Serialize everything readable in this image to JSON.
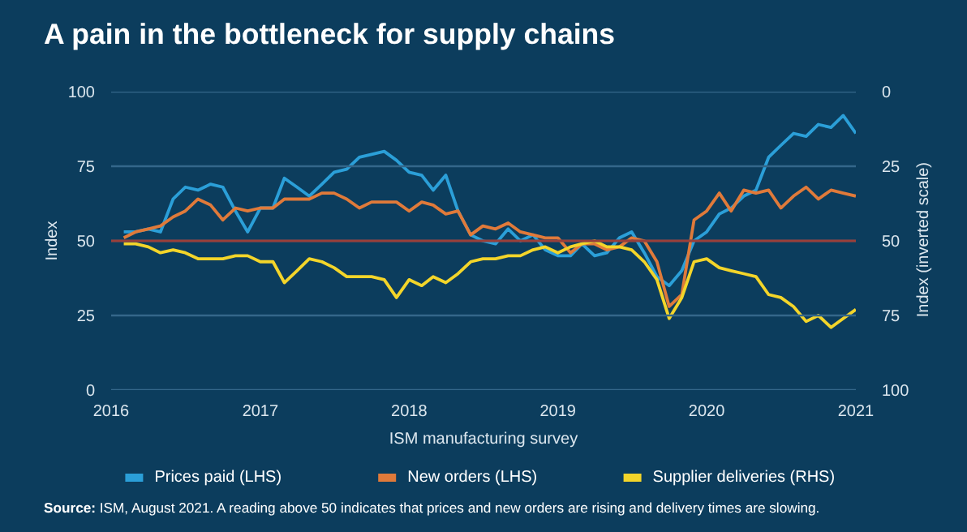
{
  "chart_data": {
    "type": "line",
    "title": "A pain in the bottleneck for supply chains",
    "xlabel": "ISM manufacturing survey",
    "ylabel": "Index",
    "y2label": "Index (inverted scale)",
    "x": [
      "2016-02",
      "2016-03",
      "2016-04",
      "2016-05",
      "2016-06",
      "2016-07",
      "2016-08",
      "2016-09",
      "2016-10",
      "2016-11",
      "2016-12",
      "2017-01",
      "2017-02",
      "2017-03",
      "2017-04",
      "2017-05",
      "2017-06",
      "2017-07",
      "2017-08",
      "2017-09",
      "2017-10",
      "2017-11",
      "2017-12",
      "2018-01",
      "2018-02",
      "2018-03",
      "2018-04",
      "2018-05",
      "2018-06",
      "2018-07",
      "2018-08",
      "2018-09",
      "2018-10",
      "2018-11",
      "2018-12",
      "2019-01",
      "2019-02",
      "2019-03",
      "2019-04",
      "2019-05",
      "2019-06",
      "2019-07",
      "2019-08",
      "2019-09",
      "2019-10",
      "2019-11",
      "2019-12",
      "2020-01",
      "2020-02",
      "2020-03",
      "2020-04",
      "2020-05",
      "2020-06",
      "2020-07",
      "2020-08",
      "2020-09",
      "2020-10",
      "2020-11",
      "2020-12",
      "2021-01"
    ],
    "xlim": [
      "2016",
      "2021"
    ],
    "xticks": [
      "2016",
      "2017",
      "2018",
      "2019",
      "2020",
      "2021"
    ],
    "ylim": [
      0,
      100
    ],
    "yticks": [
      0,
      25,
      50,
      75,
      100
    ],
    "y2lim": [
      100,
      0
    ],
    "y2ticks": [
      0,
      25,
      50,
      75,
      100
    ],
    "grid": "y",
    "legend": "bottom",
    "ref_lines": [
      {
        "axis": "y",
        "value": 50,
        "color": "#9a3f3a"
      }
    ],
    "series": [
      {
        "name": "Prices paid (LHS)",
        "color": "#2b9fd8",
        "values": [
          53,
          53,
          54,
          53,
          64,
          68,
          67,
          69,
          68,
          60,
          53,
          61,
          61,
          71,
          68,
          65,
          69,
          73,
          74,
          78,
          79,
          80,
          77,
          73,
          72,
          67,
          72,
          60,
          52,
          50,
          49,
          54,
          50,
          52,
          47,
          45,
          45,
          49,
          45,
          46,
          51,
          53,
          46,
          38,
          35,
          40,
          50,
          53,
          59,
          61,
          65,
          67,
          78,
          82,
          86,
          85,
          89,
          88,
          92,
          86
        ]
      },
      {
        "name": "New orders (LHS)",
        "color": "#e07a3a",
        "values": [
          51,
          53,
          54,
          55,
          58,
          60,
          64,
          62,
          57,
          61,
          60,
          61,
          61,
          64,
          64,
          64,
          66,
          66,
          64,
          61,
          63,
          63,
          63,
          60,
          63,
          62,
          59,
          60,
          52,
          55,
          54,
          56,
          53,
          52,
          51,
          51,
          46,
          49,
          49,
          47,
          48,
          51,
          50,
          43,
          28,
          32,
          57,
          60,
          66,
          60,
          67,
          66,
          67,
          61,
          65,
          68,
          64,
          67,
          66,
          65
        ]
      },
      {
        "name": "Supplier deliveries (RHS)",
        "color": "#f3d52a",
        "axis": "y2",
        "values": [
          51,
          51,
          52,
          54,
          53,
          54,
          56,
          56,
          56,
          55,
          55,
          57,
          57,
          64,
          60,
          56,
          57,
          59,
          62,
          62,
          62,
          63,
          69,
          63,
          65,
          62,
          64,
          61,
          57,
          56,
          56,
          55,
          55,
          53,
          52,
          54,
          52,
          51,
          50,
          52,
          52,
          53,
          57,
          63,
          76,
          69,
          57,
          56,
          59,
          60,
          61,
          62,
          68,
          69,
          72,
          77,
          75,
          79,
          76,
          73
        ]
      }
    ],
    "annotations": [
      "Source: ISM, August 2021. A reading above 50 indicates that prices and new orders are rising and delivery times are slowing."
    ]
  }
}
